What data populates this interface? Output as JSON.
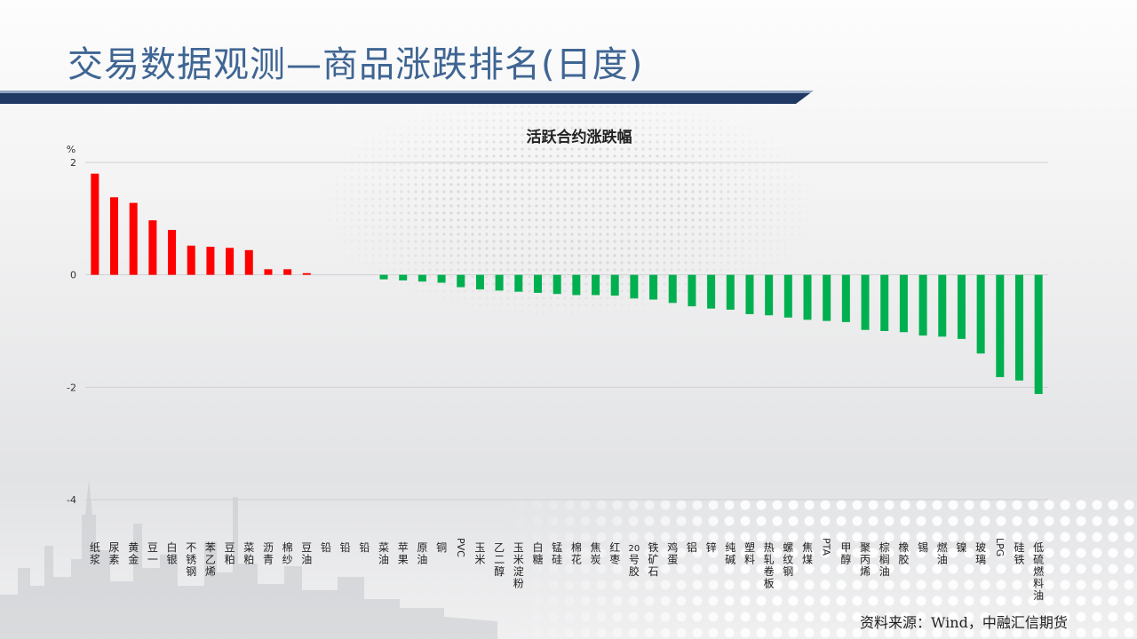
{
  "title": "交易数据观测—商品涨跌排名(日度)",
  "source": "资料来源：Wind，中融汇信期货",
  "colors": {
    "up": "#ff0000",
    "down": "#00b050",
    "title": "#3f6593",
    "bar": "#1f3864"
  },
  "chart_data": {
    "type": "bar",
    "title": "活跃合约涨跌幅",
    "ylabel": "%",
    "ylim": [
      -4,
      2
    ],
    "yticks": [
      "2",
      "0",
      "-2",
      "-4"
    ],
    "grid": true,
    "legend": "none",
    "categories": [
      "纸浆",
      "尿素",
      "黄金",
      "豆一",
      "白银",
      "不锈钢",
      "苯乙烯",
      "豆粕",
      "菜粕",
      "沥青",
      "棉纱",
      "豆油",
      "铅",
      "铅",
      "铅",
      "菜油",
      "苹果",
      "原油",
      "铜",
      "PVC",
      "玉米",
      "乙二醇",
      "玉米淀粉",
      "白糖",
      "锰硅",
      "棉花",
      "焦炭",
      "红枣",
      "20号胶",
      "铁矿石",
      "鸡蛋",
      "铝",
      "锌",
      "纯碱",
      "塑料",
      "热轧卷板",
      "螺纹钢",
      "焦煤",
      "PTA",
      "甲醇",
      "聚丙烯",
      "棕榈油",
      "橡胶",
      "锡",
      "燃油",
      "镍",
      "玻璃",
      "LPG",
      "硅铁",
      "低硫燃料油"
    ],
    "values": [
      1.8,
      1.38,
      1.28,
      0.97,
      0.8,
      0.52,
      0.5,
      0.48,
      0.44,
      0.1,
      0.1,
      0.03,
      0,
      0,
      0,
      -0.08,
      -0.1,
      -0.12,
      -0.14,
      -0.22,
      -0.26,
      -0.28,
      -0.3,
      -0.32,
      -0.34,
      -0.36,
      -0.36,
      -0.37,
      -0.42,
      -0.44,
      -0.5,
      -0.56,
      -0.6,
      -0.62,
      -0.7,
      -0.72,
      -0.76,
      -0.8,
      -0.82,
      -0.84,
      -0.98,
      -1.0,
      -1.02,
      -1.08,
      -1.1,
      -1.14,
      -1.4,
      -1.82,
      -1.88,
      -2.12
    ]
  }
}
